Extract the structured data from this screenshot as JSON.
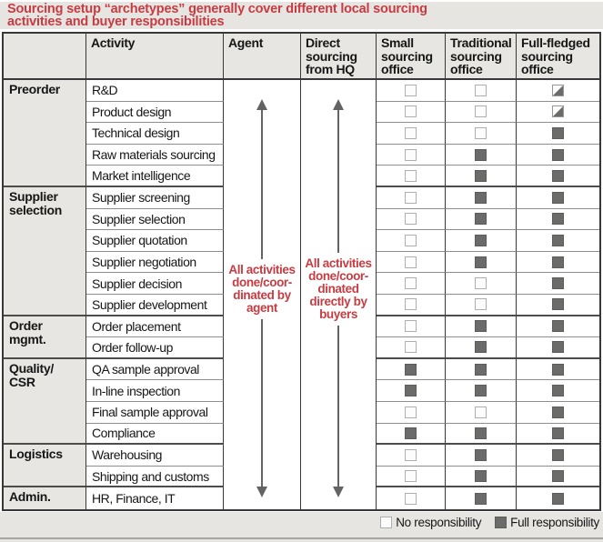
{
  "title": "Sourcing setup “archetypes” generally cover different local sourcing activities and buyer responsibilities",
  "colors": {
    "accent_red": "#c63c42",
    "box_fill": "#6b6b6a",
    "band_bg": "#e6e5e2"
  },
  "table": {
    "headers": {
      "activity": "Activity",
      "agent": "Agent",
      "direct": "Direct sourcing from HQ",
      "small": "Small sourcing office",
      "traditional": "Traditional sourcing office",
      "full_fledged": "Full-fledged sourcing office"
    },
    "agent_annotation": "All activities\ndone/coor-\ndinated by\nagent",
    "direct_annotation": "All activities\ndone/coor-\ndinated\ndirectly by\nbuyers",
    "groups": [
      {
        "category": "Preorder",
        "rows": [
          {
            "activity": "R&D",
            "small": "none",
            "traditional": "none",
            "full_fledged": "half"
          },
          {
            "activity": "Product design",
            "small": "none",
            "traditional": "none",
            "full_fledged": "half"
          },
          {
            "activity": "Technical design",
            "small": "none",
            "traditional": "none",
            "full_fledged": "full"
          },
          {
            "activity": "Raw materials sourcing",
            "small": "none",
            "traditional": "full",
            "full_fledged": "full"
          },
          {
            "activity": "Market intelligence",
            "small": "none",
            "traditional": "full",
            "full_fledged": "full"
          }
        ]
      },
      {
        "category": "Supplier\nselection",
        "rows": [
          {
            "activity": "Supplier screening",
            "small": "none",
            "traditional": "full",
            "full_fledged": "full"
          },
          {
            "activity": "Supplier selection",
            "small": "none",
            "traditional": "full",
            "full_fledged": "full"
          },
          {
            "activity": "Supplier quotation",
            "small": "none",
            "traditional": "full",
            "full_fledged": "full"
          },
          {
            "activity": "Supplier negotiation",
            "small": "none",
            "traditional": "full",
            "full_fledged": "full"
          },
          {
            "activity": "Supplier decision",
            "small": "none",
            "traditional": "none",
            "full_fledged": "full"
          },
          {
            "activity": "Supplier development",
            "small": "none",
            "traditional": "none",
            "full_fledged": "full"
          }
        ]
      },
      {
        "category": "Order\nmgmt.",
        "rows": [
          {
            "activity": "Order placement",
            "small": "none",
            "traditional": "full",
            "full_fledged": "full"
          },
          {
            "activity": "Order follow-up",
            "small": "none",
            "traditional": "full",
            "full_fledged": "full"
          }
        ]
      },
      {
        "category": "Quality/\nCSR",
        "rows": [
          {
            "activity": "QA sample approval",
            "small": "full",
            "traditional": "full",
            "full_fledged": "full"
          },
          {
            "activity": "In-line inspection",
            "small": "full",
            "traditional": "full",
            "full_fledged": "full"
          },
          {
            "activity": "Final sample approval",
            "small": "none",
            "traditional": "none",
            "full_fledged": "full"
          },
          {
            "activity": "Compliance",
            "small": "full",
            "traditional": "full",
            "full_fledged": "full"
          }
        ]
      },
      {
        "category": "Logistics",
        "rows": [
          {
            "activity": "Warehousing",
            "small": "none",
            "traditional": "full",
            "full_fledged": "full"
          },
          {
            "activity": "Shipping and customs",
            "small": "none",
            "traditional": "full",
            "full_fledged": "full"
          }
        ]
      },
      {
        "category": "Admin.",
        "rows": [
          {
            "activity": "HR, Finance, IT",
            "small": "none",
            "traditional": "full",
            "full_fledged": "full"
          }
        ]
      }
    ]
  },
  "legend": {
    "no_label": "No responsibility",
    "full_label": "Full responsibility"
  }
}
